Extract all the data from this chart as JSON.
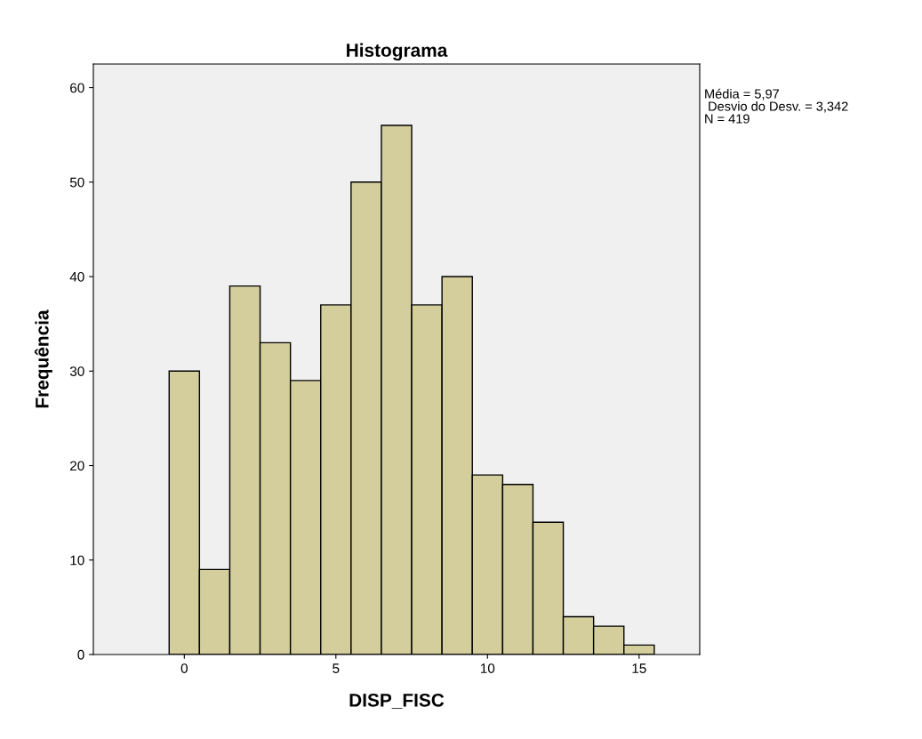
{
  "chart_data": {
    "type": "histogram",
    "title": "Histograma",
    "xlabel": "DISP_FISC",
    "ylabel": "Frequência",
    "bins": [
      -0.5,
      0.5,
      1.5,
      2.5,
      3.5,
      4.5,
      5.5,
      6.5,
      7.5,
      8.5,
      9.5,
      10.5,
      11.5,
      12.5,
      13.5,
      14.5,
      15.5
    ],
    "values": [
      30,
      9,
      39,
      33,
      29,
      37,
      50,
      56,
      37,
      40,
      19,
      18,
      14,
      4,
      3,
      1
    ],
    "color": "#d3ce9c",
    "xlim": [
      -3,
      17
    ],
    "xticks": [
      0,
      5,
      10,
      15
    ],
    "ylim": [
      0,
      62.5
    ],
    "yticks": [
      0,
      10,
      20,
      30,
      40,
      50,
      60
    ],
    "grid": false,
    "annotations": [
      "Média = 5,97",
      " Desvio do Desv. = 3,342",
      "N = 419"
    ]
  }
}
